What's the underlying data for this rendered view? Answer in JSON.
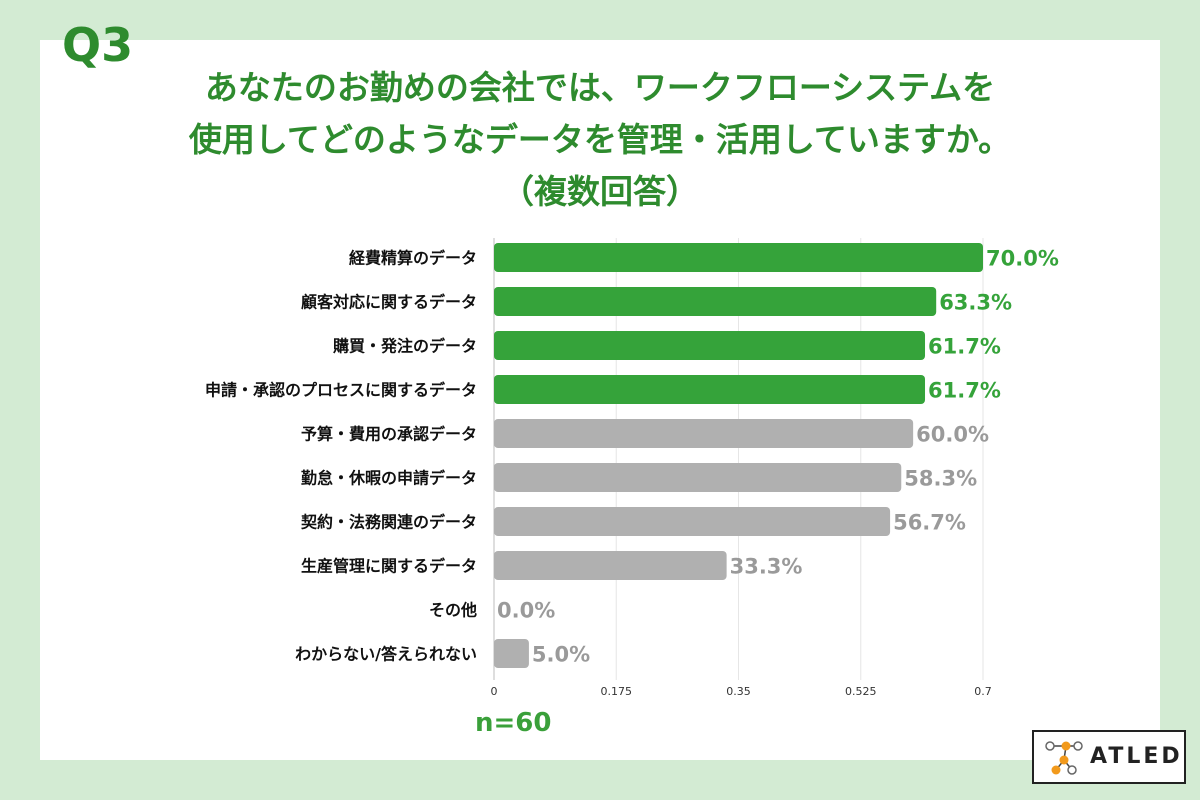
{
  "question_label": "Q3",
  "title_lines": [
    "あなたのお勤めの会社では、ワークフローシステムを",
    "使用してどのようなデータを管理・活用していますか。",
    "（複数回答）"
  ],
  "sample_size": "n=60",
  "logo_text": "ATLED",
  "colors": {
    "background": "#d3ebd3",
    "highlight_bar": "#35a33a",
    "normal_bar": "#b0b0b0",
    "highlight_label": "#35a33a",
    "normal_label": "#9a9a9a",
    "title": "#2e8b2e"
  },
  "chart_data": {
    "type": "bar",
    "orientation": "horizontal",
    "categories": [
      "経費精算のデータ",
      "顧客対応に関するデータ",
      "購買・発注のデータ",
      "申請・承認のプロセスに関するデータ",
      "予算・費用の承認データ",
      "勤怠・休暇の申請データ",
      "契約・法務関連のデータ",
      "生産管理に関するデータ",
      "その他",
      "わからない/答えられない"
    ],
    "values": [
      0.7,
      0.633,
      0.617,
      0.617,
      0.6,
      0.583,
      0.567,
      0.333,
      0.0,
      0.05
    ],
    "value_labels": [
      "70.0%",
      "63.3%",
      "61.7%",
      "61.7%",
      "60.0%",
      "58.3%",
      "56.7%",
      "33.3%",
      "0.0%",
      "5.0%"
    ],
    "highlighted": [
      true,
      true,
      true,
      true,
      false,
      false,
      false,
      false,
      false,
      false
    ],
    "xlim": [
      0,
      0.7
    ],
    "xticks": [
      "0",
      "0.175",
      "0.35",
      "0.525",
      "0.7"
    ],
    "xtick_values": [
      0,
      0.175,
      0.35,
      0.525,
      0.7
    ],
    "grid": true
  }
}
